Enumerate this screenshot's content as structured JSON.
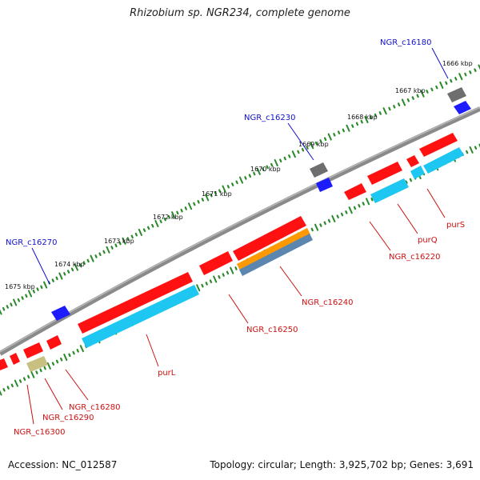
{
  "title": "Rhizobium sp. NGR234, complete genome",
  "footer": {
    "accession": "Accession: NC_012587",
    "summary": "Topology: circular; Length: 3,925,702 bp; Genes: 3,691"
  },
  "colors": {
    "backbone": "#8a8a8a",
    "tick": "#2a8a2a",
    "blue_label": "#1010cc",
    "red_label": "#cc1010",
    "gene_red": "#ff1111",
    "gene_cyan": "#1ec6f2",
    "gene_orange": "#ff9900",
    "gene_steel": "#5b86b0",
    "gene_khaki": "#c8c080",
    "gene_blue": "#1c1cff",
    "gene_gray": "#6e6e6e"
  },
  "scale_labels": [
    "1666 kbp",
    "1667 kbp",
    "1668 kbp",
    "1669 kbp",
    "1670 kbp",
    "1671 kbp",
    "1672 kbp",
    "1673 kbp",
    "1674 kbp",
    "1675 kbp"
  ],
  "gene_labels": {
    "NGR_c16180": "NGR_c16180",
    "NGR_c16230": "NGR_c16230",
    "NGR_c16270": "NGR_c16270",
    "purS": "purS",
    "purQ": "purQ",
    "NGR_c16220": "NGR_c16220",
    "NGR_c16240": "NGR_c16240",
    "NGR_c16250": "NGR_c16250",
    "purL": "purL",
    "NGR_c16280": "NGR_c16280",
    "NGR_c16290": "NGR_c16290",
    "NGR_c16300": "NGR_c16300"
  }
}
